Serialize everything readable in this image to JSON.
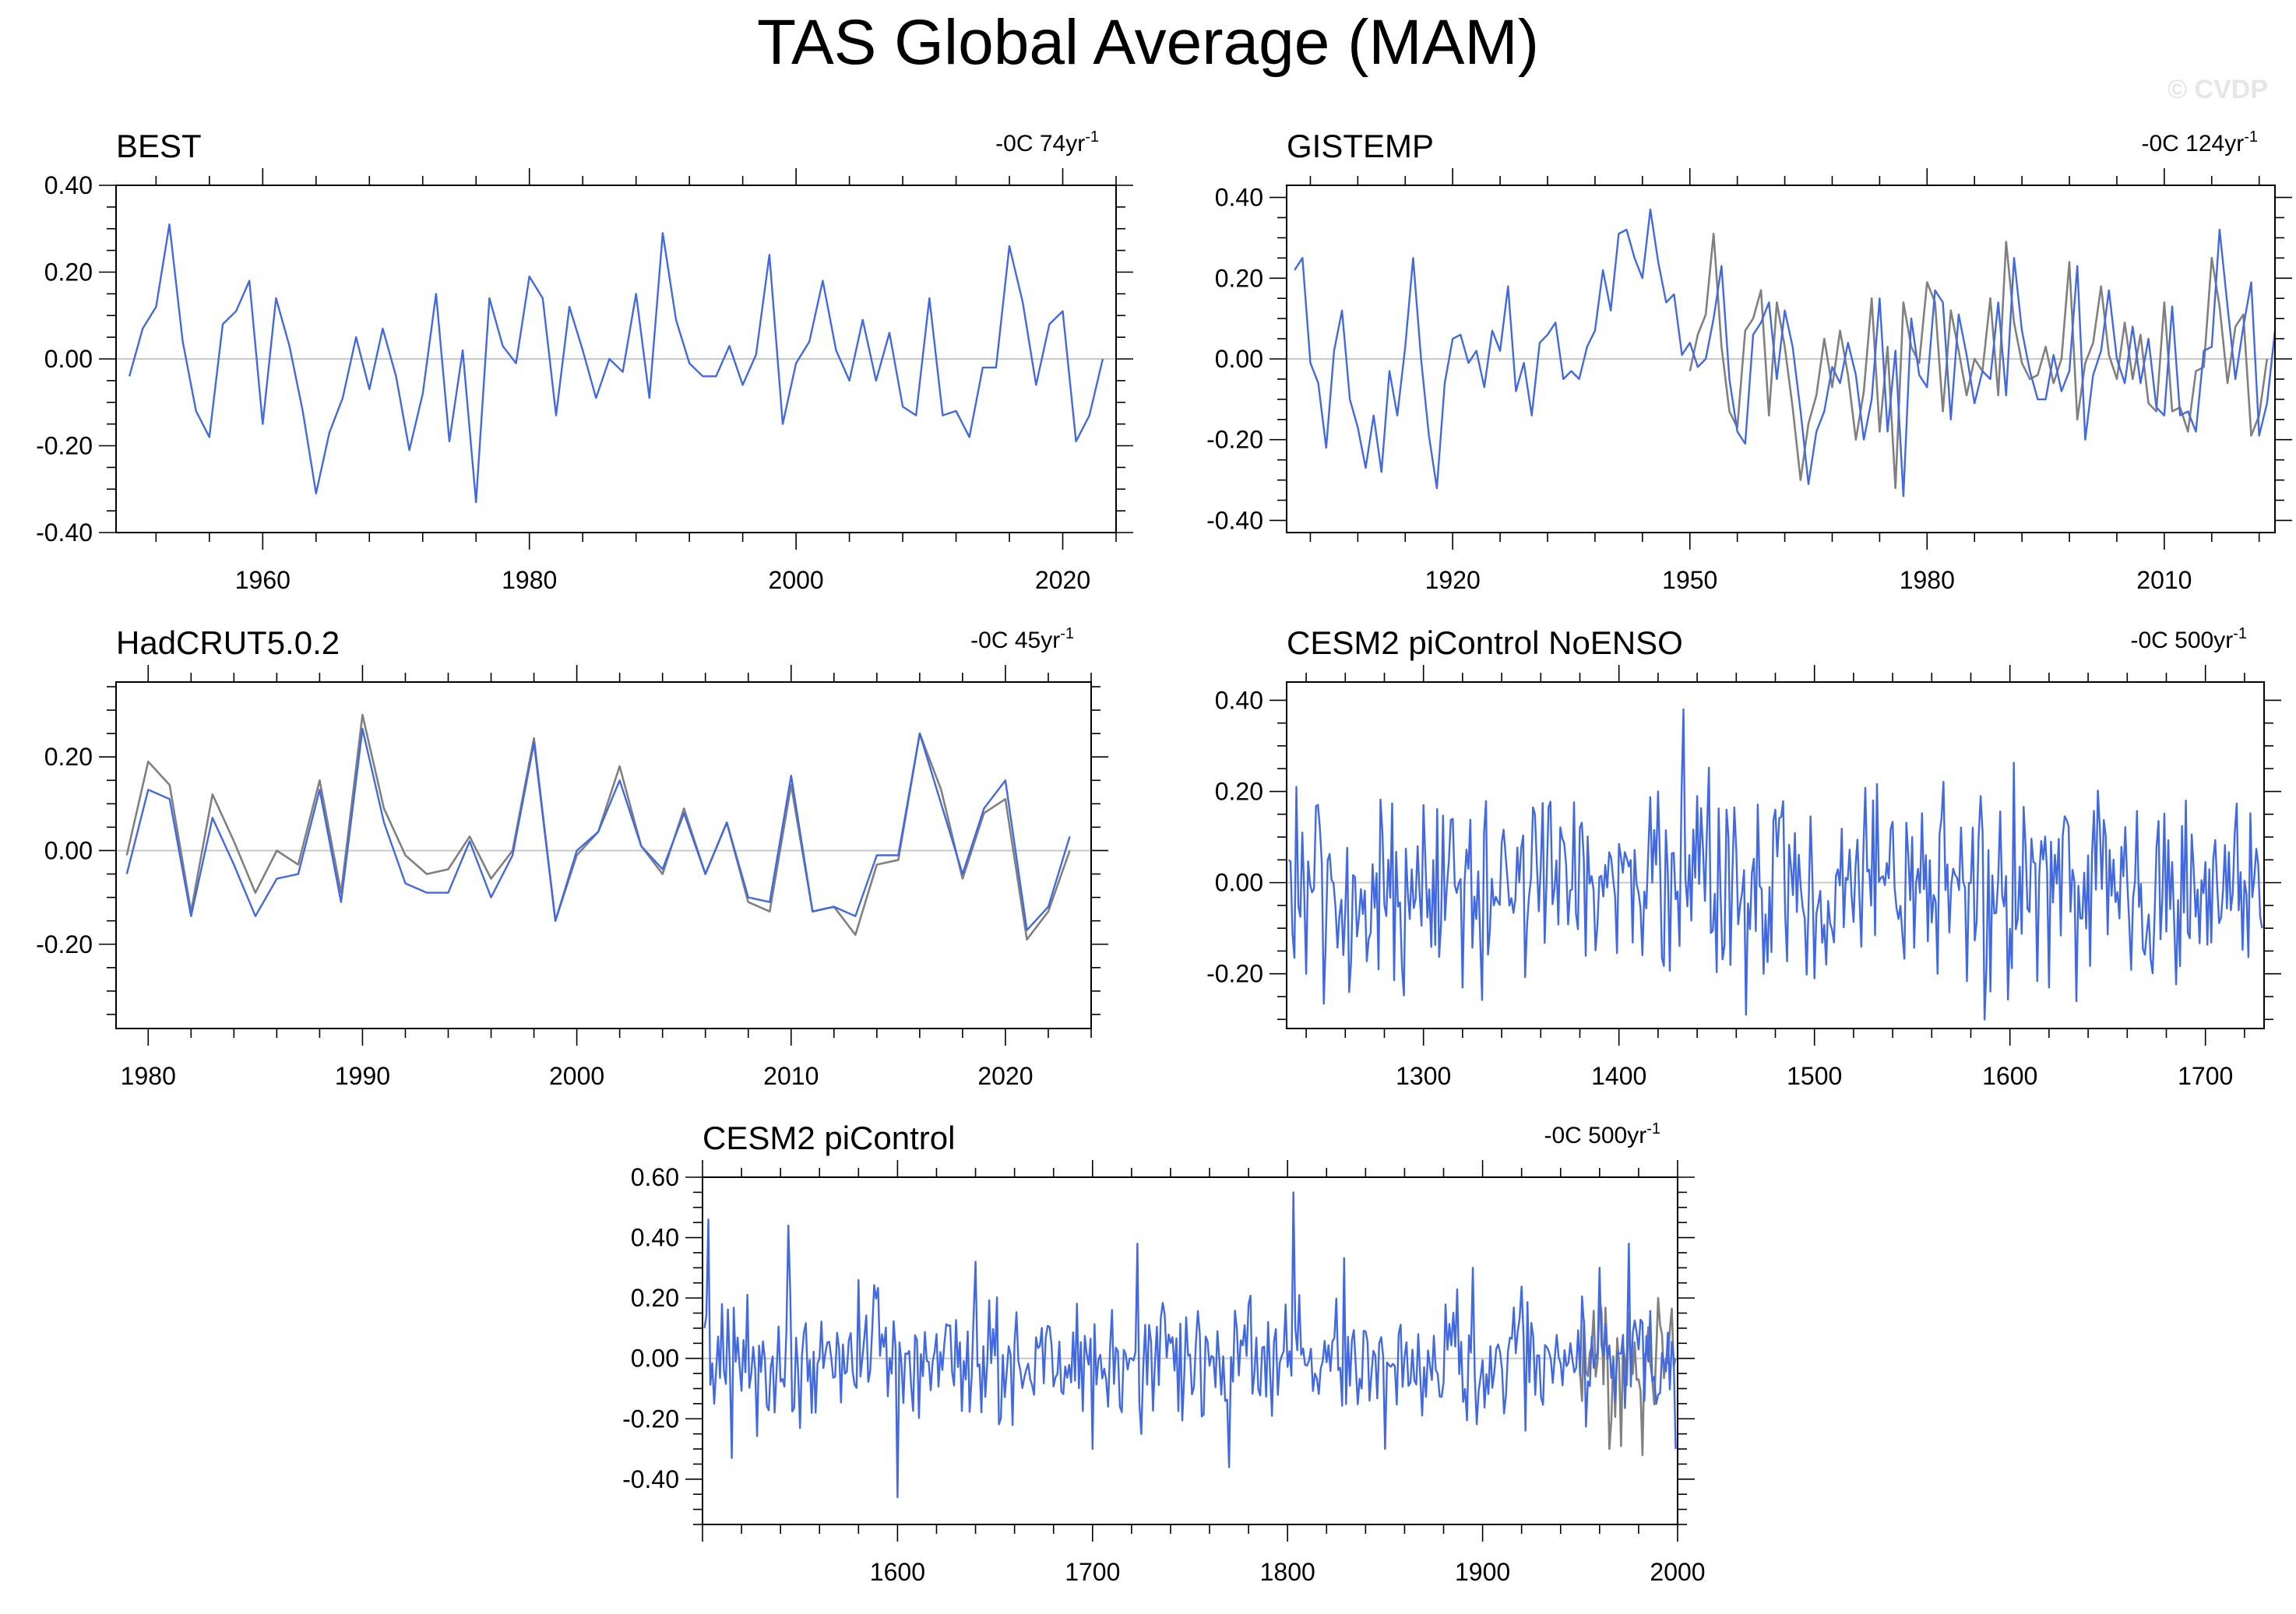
{
  "title": "TAS Global Average (MAM)",
  "watermark": "© CVDP",
  "colors": {
    "model_line": "#4169e1",
    "obs_line": "#808080",
    "zero_line": "#c8c8c8",
    "frame": "#000000"
  },
  "chart_data": [
    {
      "type": "line",
      "name": "BEST",
      "title": "BEST",
      "trend_label": "-0C 74yr-1",
      "trend_text": "-0C 74yr",
      "trend_sup": "-1",
      "xlim": [
        1949,
        2024
      ],
      "ylim": [
        -0.4,
        0.4
      ],
      "xticks": [
        1960,
        1980,
        2000,
        2020
      ],
      "yticks": [
        -0.4,
        -0.2,
        0.0,
        0.2,
        0.4
      ],
      "ytick_labels": [
        "-0.40",
        "-0.20",
        "0.00",
        "0.20",
        "0.40"
      ],
      "series": [
        {
          "name": "BEST",
          "color": "model",
          "x_start": 1950,
          "values": [
            -0.04,
            0.07,
            0.12,
            0.31,
            0.04,
            -0.12,
            -0.18,
            0.08,
            0.11,
            0.18,
            -0.15,
            0.14,
            0.03,
            -0.12,
            -0.31,
            -0.17,
            -0.09,
            0.05,
            -0.07,
            0.07,
            -0.04,
            -0.21,
            -0.08,
            0.15,
            -0.19,
            0.02,
            -0.33,
            0.14,
            0.03,
            -0.01,
            0.19,
            0.14,
            -0.13,
            0.12,
            0.02,
            -0.09,
            0.0,
            -0.03,
            0.15,
            -0.09,
            0.29,
            0.09,
            -0.01,
            -0.04,
            -0.04,
            0.03,
            -0.06,
            0.01,
            0.24,
            -0.15,
            -0.01,
            0.04,
            0.18,
            0.02,
            -0.05,
            0.09,
            -0.05,
            0.06,
            -0.11,
            -0.13,
            0.14,
            -0.13,
            -0.12,
            -0.18,
            -0.02,
            -0.02,
            0.26,
            0.13,
            -0.06,
            0.08,
            0.11,
            -0.19,
            -0.13,
            0.0
          ]
        }
      ]
    },
    {
      "type": "line",
      "name": "GISTEMP",
      "title": "GISTEMP",
      "trend_label": "-0C 124yr-1",
      "trend_text": "-0C 124yr",
      "trend_sup": "-1",
      "xlim": [
        1899,
        2024
      ],
      "ylim": [
        -0.43,
        0.43
      ],
      "xticks": [
        1920,
        1950,
        1980,
        2010
      ],
      "yticks": [
        -0.4,
        -0.2,
        0.0,
        0.2,
        0.4
      ],
      "ytick_labels": [
        "-0.40",
        "-0.20",
        "0.00",
        "0.20",
        "0.40"
      ],
      "series": [
        {
          "name": "observations (grey)",
          "color": "obs",
          "x_start": 1950,
          "values": [
            -0.03,
            0.06,
            0.11,
            0.31,
            0.03,
            -0.13,
            -0.17,
            0.07,
            0.1,
            0.17,
            -0.14,
            0.14,
            0.03,
            -0.12,
            -0.3,
            -0.16,
            -0.09,
            0.05,
            -0.07,
            0.07,
            -0.04,
            -0.2,
            -0.08,
            0.15,
            -0.18,
            0.03,
            -0.32,
            0.14,
            0.03,
            -0.01,
            0.19,
            0.14,
            -0.13,
            0.12,
            0.02,
            -0.09,
            0.0,
            -0.03,
            0.15,
            -0.09,
            0.29,
            0.09,
            -0.01,
            -0.05,
            -0.04,
            0.03,
            -0.06,
            0.0,
            0.24,
            -0.15,
            -0.01,
            0.04,
            0.18,
            0.01,
            -0.05,
            0.09,
            -0.05,
            0.06,
            -0.11,
            -0.13,
            0.14,
            -0.13,
            -0.12,
            -0.18,
            -0.03,
            -0.02,
            0.25,
            0.13,
            -0.06,
            0.08,
            0.11,
            -0.19,
            -0.14,
            0.0
          ]
        },
        {
          "name": "GISTEMP",
          "color": "model",
          "x_start": 1900,
          "values": [
            0.22,
            0.25,
            -0.01,
            -0.06,
            -0.22,
            0.02,
            0.12,
            -0.1,
            -0.17,
            -0.27,
            -0.14,
            -0.28,
            -0.03,
            -0.14,
            0.03,
            0.25,
            0.0,
            -0.19,
            -0.32,
            -0.06,
            0.05,
            0.06,
            -0.01,
            0.02,
            -0.07,
            0.07,
            0.02,
            0.18,
            -0.08,
            -0.01,
            -0.14,
            0.04,
            0.06,
            0.09,
            -0.05,
            -0.03,
            -0.05,
            0.03,
            0.07,
            0.22,
            0.12,
            0.31,
            0.32,
            0.25,
            0.2,
            0.37,
            0.24,
            0.14,
            0.16,
            0.01,
            0.04,
            -0.02,
            0.0,
            0.1,
            0.23,
            -0.05,
            -0.18,
            -0.21,
            0.06,
            0.09,
            0.14,
            -0.05,
            0.12,
            0.03,
            -0.13,
            -0.31,
            -0.18,
            -0.13,
            -0.02,
            -0.06,
            0.04,
            -0.04,
            -0.2,
            -0.1,
            0.15,
            -0.18,
            0.02,
            -0.34,
            0.1,
            -0.04,
            -0.07,
            0.17,
            0.14,
            -0.15,
            0.11,
            0.01,
            -0.11,
            -0.03,
            -0.05,
            0.14,
            -0.09,
            0.25,
            0.07,
            -0.03,
            -0.1,
            -0.1,
            0.01,
            -0.08,
            -0.03,
            0.23,
            -0.2,
            -0.04,
            0.02,
            0.17,
            0.0,
            -0.06,
            0.08,
            -0.06,
            0.05,
            -0.12,
            -0.14,
            0.13,
            -0.14,
            -0.13,
            -0.18,
            0.02,
            0.03,
            0.32,
            0.13,
            -0.05,
            0.08,
            0.19,
            -0.19,
            -0.11,
            0.07
          ]
        }
      ]
    },
    {
      "type": "line",
      "name": "HadCRUT5.0.2",
      "title": "HadCRUT5.0.2",
      "trend_label": "-0C 45yr-1",
      "trend_text": "-0C 45yr",
      "trend_sup": "-1",
      "xlim": [
        1978.5,
        2024
      ],
      "ylim": [
        -0.38,
        0.36
      ],
      "xticks": [
        1980,
        1990,
        2000,
        2010,
        2020
      ],
      "yticks": [
        -0.2,
        0.0,
        0.2
      ],
      "ytick_labels": [
        "-0.20",
        "0.00",
        "0.20"
      ],
      "series": [
        {
          "name": "observations (grey)",
          "color": "obs",
          "x_start": 1979,
          "values": [
            -0.01,
            0.19,
            0.14,
            -0.13,
            0.12,
            0.02,
            -0.09,
            0.0,
            -0.03,
            0.15,
            -0.09,
            0.29,
            0.09,
            -0.01,
            -0.05,
            -0.04,
            0.03,
            -0.06,
            0.0,
            0.24,
            -0.15,
            -0.01,
            0.04,
            0.18,
            0.01,
            -0.05,
            0.09,
            -0.05,
            0.06,
            -0.11,
            -0.13,
            0.14,
            -0.13,
            -0.12,
            -0.18,
            -0.03,
            -0.02,
            0.25,
            0.13,
            -0.06,
            0.08,
            0.11,
            -0.19,
            -0.13,
            0.0
          ]
        },
        {
          "name": "HadCRUT5.0.2",
          "color": "model",
          "x_start": 1979,
          "values": [
            -0.05,
            0.13,
            0.11,
            -0.14,
            0.07,
            -0.03,
            -0.14,
            -0.06,
            -0.05,
            0.13,
            -0.11,
            0.26,
            0.06,
            -0.07,
            -0.09,
            -0.09,
            0.02,
            -0.1,
            -0.01,
            0.23,
            -0.15,
            0.0,
            0.04,
            0.15,
            0.01,
            -0.04,
            0.08,
            -0.05,
            0.06,
            -0.1,
            -0.11,
            0.16,
            -0.13,
            -0.12,
            -0.14,
            -0.01,
            -0.01,
            0.25,
            0.1,
            -0.05,
            0.09,
            0.15,
            -0.17,
            -0.12,
            0.03
          ]
        }
      ]
    },
    {
      "type": "line",
      "name": "CESM2 piControl NoENSO",
      "title": "CESM2 piControl NoENSO",
      "trend_label": "-0C 500yr-1",
      "trend_text": "-0C 500yr",
      "trend_sup": "-1",
      "xlim": [
        1230,
        1730
      ],
      "ylim": [
        -0.32,
        0.44
      ],
      "xticks": [
        1300,
        1400,
        1500,
        1600,
        1700
      ],
      "yticks": [
        -0.2,
        0.0,
        0.2,
        0.4
      ],
      "ytick_labels": [
        "-0.20",
        "0.00",
        "0.20",
        "0.40"
      ],
      "series": [
        {
          "name": "CESM2 piControl NoENSO",
          "color": "model",
          "x_start": 1231,
          "generated": true,
          "keypoints": [
            [
              1231,
              0.05
            ],
            [
              1235,
              0.21
            ],
            [
              1240,
              -0.2
            ],
            [
              1262,
              -0.24
            ],
            [
              1300,
              0.17
            ],
            [
              1320,
              -0.23
            ],
            [
              1380,
              0.12
            ],
            [
              1420,
              0.2
            ],
            [
              1433,
              0.38
            ],
            [
              1440,
              0.19
            ],
            [
              1455,
              0.16
            ],
            [
              1465,
              -0.29
            ],
            [
              1480,
              0.16
            ],
            [
              1500,
              -0.21
            ],
            [
              1530,
              0.18
            ],
            [
              1563,
              -0.2
            ],
            [
              1585,
              0.19
            ],
            [
              1620,
              -0.23
            ],
            [
              1634,
              -0.26
            ],
            [
              1690,
              0.18
            ],
            [
              1729,
              -0.1
            ]
          ]
        }
      ]
    },
    {
      "type": "line",
      "name": "CESM2 piControl",
      "title": "CESM2 piControl",
      "trend_label": "-0C 500yr-1",
      "trend_text": "-0C 500yr",
      "trend_sup": "-1",
      "xlim": [
        1500,
        2000
      ],
      "ylim": [
        -0.55,
        0.6
      ],
      "xticks": [
        1600,
        1700,
        1800,
        1900,
        2000
      ],
      "yticks": [
        -0.4,
        -0.2,
        0.0,
        0.2,
        0.4,
        0.6
      ],
      "ytick_labels": [
        "-0.40",
        "-0.20",
        "0.00",
        "0.20",
        "0.40",
        "0.60"
      ],
      "series": [
        {
          "name": "observations (grey)",
          "color": "obs",
          "x_start": 1950,
          "generated": true,
          "keypoints": [
            [
              1950,
              -0.05
            ],
            [
              1960,
              0.2
            ],
            [
              1965,
              -0.3
            ],
            [
              1975,
              0.15
            ],
            [
              1982,
              -0.32
            ],
            [
              1990,
              0.2
            ],
            [
              1999,
              0.0
            ]
          ]
        },
        {
          "name": "CESM2 piControl",
          "color": "model",
          "x_start": 1501,
          "generated": true,
          "keypoints": [
            [
              1501,
              0.1
            ],
            [
              1503,
              0.46
            ],
            [
              1506,
              -0.15
            ],
            [
              1515,
              -0.33
            ],
            [
              1544,
              0.44
            ],
            [
              1600,
              -0.46
            ],
            [
              1640,
              0.32
            ],
            [
              1700,
              -0.3
            ],
            [
              1723,
              0.38
            ],
            [
              1770,
              -0.36
            ],
            [
              1803,
              0.55
            ],
            [
              1850,
              -0.3
            ],
            [
              1895,
              0.3
            ],
            [
              1960,
              0.3
            ],
            [
              1975,
              0.38
            ],
            [
              1999,
              -0.3
            ]
          ]
        }
      ]
    }
  ]
}
